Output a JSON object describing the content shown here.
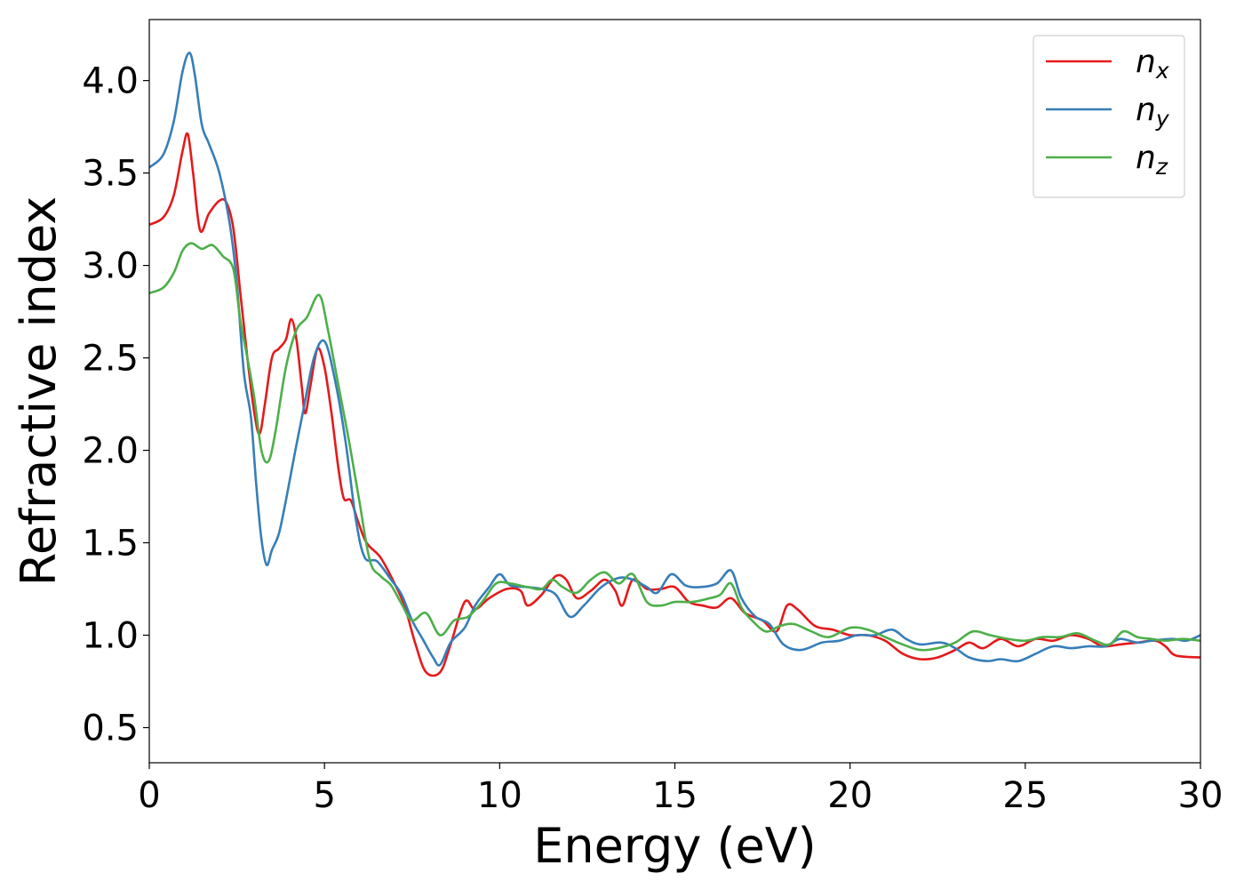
{
  "chart_data": {
    "type": "line",
    "title": "",
    "xlabel": "Energy (eV)",
    "ylabel": "Refractive index",
    "xlim": [
      0,
      30
    ],
    "ylim": [
      0.31,
      4.33
    ],
    "xticks": [
      0,
      5,
      10,
      15,
      20,
      25,
      30
    ],
    "yticks": [
      0.5,
      1.0,
      1.5,
      2.0,
      2.5,
      3.0,
      3.5,
      4.0
    ],
    "grid": false,
    "legend_position": "top-right",
    "series": [
      {
        "name": "n_x",
        "label_base": "n",
        "label_sub": "x",
        "color": "#e41a1c",
        "points": [
          [
            0,
            3.22
          ],
          [
            0.4,
            3.26
          ],
          [
            0.7,
            3.38
          ],
          [
            0.95,
            3.62
          ],
          [
            1.1,
            3.71
          ],
          [
            1.25,
            3.5
          ],
          [
            1.45,
            3.19
          ],
          [
            1.7,
            3.28
          ],
          [
            2.0,
            3.35
          ],
          [
            2.2,
            3.34
          ],
          [
            2.4,
            3.2
          ],
          [
            2.6,
            2.85
          ],
          [
            2.8,
            2.5
          ],
          [
            3.0,
            2.2
          ],
          [
            3.15,
            2.09
          ],
          [
            3.3,
            2.25
          ],
          [
            3.5,
            2.5
          ],
          [
            3.7,
            2.55
          ],
          [
            3.9,
            2.6
          ],
          [
            4.05,
            2.71
          ],
          [
            4.2,
            2.6
          ],
          [
            4.35,
            2.35
          ],
          [
            4.45,
            2.2
          ],
          [
            4.6,
            2.35
          ],
          [
            4.8,
            2.55
          ],
          [
            5.0,
            2.45
          ],
          [
            5.2,
            2.2
          ],
          [
            5.4,
            1.9
          ],
          [
            5.55,
            1.74
          ],
          [
            5.75,
            1.73
          ],
          [
            5.95,
            1.62
          ],
          [
            6.2,
            1.5
          ],
          [
            6.6,
            1.42
          ],
          [
            7.0,
            1.28
          ],
          [
            7.3,
            1.15
          ],
          [
            7.6,
            0.95
          ],
          [
            7.9,
            0.8
          ],
          [
            8.3,
            0.8
          ],
          [
            8.6,
            0.95
          ],
          [
            9.0,
            1.18
          ],
          [
            9.3,
            1.14
          ],
          [
            9.7,
            1.2
          ],
          [
            10.2,
            1.25
          ],
          [
            10.6,
            1.24
          ],
          [
            10.8,
            1.16
          ],
          [
            11.2,
            1.22
          ],
          [
            11.6,
            1.32
          ],
          [
            11.9,
            1.3
          ],
          [
            12.2,
            1.2
          ],
          [
            12.6,
            1.24
          ],
          [
            13.0,
            1.3
          ],
          [
            13.3,
            1.24
          ],
          [
            13.5,
            1.16
          ],
          [
            13.8,
            1.3
          ],
          [
            14.2,
            1.25
          ],
          [
            14.6,
            1.25
          ],
          [
            15.0,
            1.26
          ],
          [
            15.4,
            1.18
          ],
          [
            15.8,
            1.16
          ],
          [
            16.2,
            1.15
          ],
          [
            16.6,
            1.2
          ],
          [
            17.0,
            1.12
          ],
          [
            17.5,
            1.08
          ],
          [
            17.9,
            1.02
          ],
          [
            18.2,
            1.16
          ],
          [
            18.5,
            1.14
          ],
          [
            19.0,
            1.05
          ],
          [
            19.5,
            1.03
          ],
          [
            20.0,
            1.0
          ],
          [
            20.5,
            1.0
          ],
          [
            21.0,
            0.97
          ],
          [
            21.5,
            0.9
          ],
          [
            22.0,
            0.87
          ],
          [
            22.5,
            0.88
          ],
          [
            23.0,
            0.92
          ],
          [
            23.4,
            0.96
          ],
          [
            23.8,
            0.93
          ],
          [
            24.3,
            0.98
          ],
          [
            24.8,
            0.94
          ],
          [
            25.3,
            0.98
          ],
          [
            25.8,
            0.97
          ],
          [
            26.3,
            1.0
          ],
          [
            26.8,
            0.98
          ],
          [
            27.2,
            0.94
          ],
          [
            27.7,
            0.95
          ],
          [
            28.2,
            0.96
          ],
          [
            28.7,
            0.97
          ],
          [
            29.0,
            0.94
          ],
          [
            29.3,
            0.89
          ],
          [
            30,
            0.88
          ]
        ]
      },
      {
        "name": "n_y",
        "label_base": "n",
        "label_sub": "y",
        "color": "#377eb8",
        "points": [
          [
            0,
            3.53
          ],
          [
            0.4,
            3.6
          ],
          [
            0.7,
            3.78
          ],
          [
            0.95,
            4.05
          ],
          [
            1.15,
            4.15
          ],
          [
            1.3,
            4.03
          ],
          [
            1.5,
            3.76
          ],
          [
            1.7,
            3.66
          ],
          [
            2.0,
            3.5
          ],
          [
            2.3,
            3.22
          ],
          [
            2.5,
            2.9
          ],
          [
            2.7,
            2.42
          ],
          [
            2.9,
            2.18
          ],
          [
            3.05,
            1.82
          ],
          [
            3.2,
            1.52
          ],
          [
            3.35,
            1.38
          ],
          [
            3.5,
            1.46
          ],
          [
            3.7,
            1.55
          ],
          [
            3.9,
            1.73
          ],
          [
            4.15,
            1.98
          ],
          [
            4.4,
            2.22
          ],
          [
            4.7,
            2.5
          ],
          [
            5.0,
            2.59
          ],
          [
            5.3,
            2.38
          ],
          [
            5.6,
            2.05
          ],
          [
            5.9,
            1.62
          ],
          [
            6.15,
            1.42
          ],
          [
            6.5,
            1.4
          ],
          [
            6.9,
            1.3
          ],
          [
            7.2,
            1.22
          ],
          [
            7.5,
            1.08
          ],
          [
            7.8,
            0.98
          ],
          [
            8.1,
            0.88
          ],
          [
            8.3,
            0.84
          ],
          [
            8.6,
            0.96
          ],
          [
            9.0,
            1.04
          ],
          [
            9.3,
            1.16
          ],
          [
            9.7,
            1.26
          ],
          [
            10.0,
            1.33
          ],
          [
            10.3,
            1.27
          ],
          [
            10.8,
            1.26
          ],
          [
            11.2,
            1.25
          ],
          [
            11.6,
            1.22
          ],
          [
            12.0,
            1.1
          ],
          [
            12.4,
            1.16
          ],
          [
            12.9,
            1.26
          ],
          [
            13.4,
            1.31
          ],
          [
            13.8,
            1.3
          ],
          [
            14.2,
            1.26
          ],
          [
            14.5,
            1.23
          ],
          [
            14.9,
            1.33
          ],
          [
            15.3,
            1.27
          ],
          [
            15.7,
            1.26
          ],
          [
            16.2,
            1.28
          ],
          [
            16.6,
            1.35
          ],
          [
            16.9,
            1.2
          ],
          [
            17.3,
            1.1
          ],
          [
            17.7,
            1.06
          ],
          [
            18.1,
            0.95
          ],
          [
            18.6,
            0.92
          ],
          [
            19.2,
            0.96
          ],
          [
            19.7,
            0.97
          ],
          [
            20.2,
            1.0
          ],
          [
            20.7,
            1.0
          ],
          [
            21.2,
            1.03
          ],
          [
            21.6,
            0.98
          ],
          [
            22.0,
            0.95
          ],
          [
            22.6,
            0.96
          ],
          [
            23.0,
            0.93
          ],
          [
            23.4,
            0.88
          ],
          [
            23.9,
            0.86
          ],
          [
            24.3,
            0.87
          ],
          [
            24.8,
            0.86
          ],
          [
            25.3,
            0.9
          ],
          [
            25.8,
            0.94
          ],
          [
            26.3,
            0.93
          ],
          [
            26.8,
            0.94
          ],
          [
            27.3,
            0.94
          ],
          [
            27.7,
            0.98
          ],
          [
            28.2,
            0.96
          ],
          [
            28.6,
            0.97
          ],
          [
            29.2,
            0.98
          ],
          [
            29.6,
            0.97
          ],
          [
            30,
            1.0
          ]
        ]
      },
      {
        "name": "n_z",
        "label_base": "n",
        "label_sub": "z",
        "color": "#4daf4a",
        "points": [
          [
            0,
            2.85
          ],
          [
            0.4,
            2.88
          ],
          [
            0.7,
            2.96
          ],
          [
            0.95,
            3.08
          ],
          [
            1.2,
            3.12
          ],
          [
            1.5,
            3.09
          ],
          [
            1.8,
            3.11
          ],
          [
            2.1,
            3.05
          ],
          [
            2.4,
            2.98
          ],
          [
            2.6,
            2.7
          ],
          [
            2.8,
            2.5
          ],
          [
            3.0,
            2.28
          ],
          [
            3.2,
            2.0
          ],
          [
            3.4,
            1.94
          ],
          [
            3.6,
            2.1
          ],
          [
            3.9,
            2.45
          ],
          [
            4.2,
            2.65
          ],
          [
            4.5,
            2.72
          ],
          [
            4.85,
            2.84
          ],
          [
            5.1,
            2.65
          ],
          [
            5.4,
            2.35
          ],
          [
            5.7,
            2.05
          ],
          [
            6.0,
            1.72
          ],
          [
            6.3,
            1.4
          ],
          [
            6.6,
            1.32
          ],
          [
            6.9,
            1.27
          ],
          [
            7.2,
            1.17
          ],
          [
            7.5,
            1.08
          ],
          [
            7.9,
            1.12
          ],
          [
            8.3,
            1.0
          ],
          [
            8.7,
            1.08
          ],
          [
            9.1,
            1.1
          ],
          [
            9.5,
            1.18
          ],
          [
            9.9,
            1.28
          ],
          [
            10.3,
            1.28
          ],
          [
            10.8,
            1.26
          ],
          [
            11.2,
            1.25
          ],
          [
            11.5,
            1.3
          ],
          [
            11.8,
            1.26
          ],
          [
            12.2,
            1.23
          ],
          [
            12.6,
            1.3
          ],
          [
            13.0,
            1.34
          ],
          [
            13.4,
            1.28
          ],
          [
            13.8,
            1.33
          ],
          [
            14.2,
            1.18
          ],
          [
            14.6,
            1.16
          ],
          [
            15.0,
            1.18
          ],
          [
            15.5,
            1.18
          ],
          [
            16.0,
            1.2
          ],
          [
            16.3,
            1.22
          ],
          [
            16.6,
            1.28
          ],
          [
            16.9,
            1.15
          ],
          [
            17.2,
            1.08
          ],
          [
            17.6,
            1.02
          ],
          [
            18.0,
            1.05
          ],
          [
            18.4,
            1.06
          ],
          [
            18.9,
            1.02
          ],
          [
            19.4,
            0.99
          ],
          [
            20.0,
            1.04
          ],
          [
            20.5,
            1.03
          ],
          [
            21.0,
            0.99
          ],
          [
            21.5,
            0.95
          ],
          [
            22.0,
            0.92
          ],
          [
            22.5,
            0.93
          ],
          [
            23.0,
            0.96
          ],
          [
            23.5,
            1.02
          ],
          [
            24.0,
            1.0
          ],
          [
            24.5,
            0.98
          ],
          [
            25.0,
            0.97
          ],
          [
            25.5,
            0.99
          ],
          [
            26.0,
            0.99
          ],
          [
            26.5,
            1.01
          ],
          [
            27.0,
            0.97
          ],
          [
            27.4,
            0.95
          ],
          [
            27.8,
            1.02
          ],
          [
            28.2,
            0.99
          ],
          [
            28.6,
            0.98
          ],
          [
            29.0,
            0.97
          ],
          [
            29.5,
            0.98
          ],
          [
            30,
            0.97
          ]
        ]
      }
    ]
  }
}
